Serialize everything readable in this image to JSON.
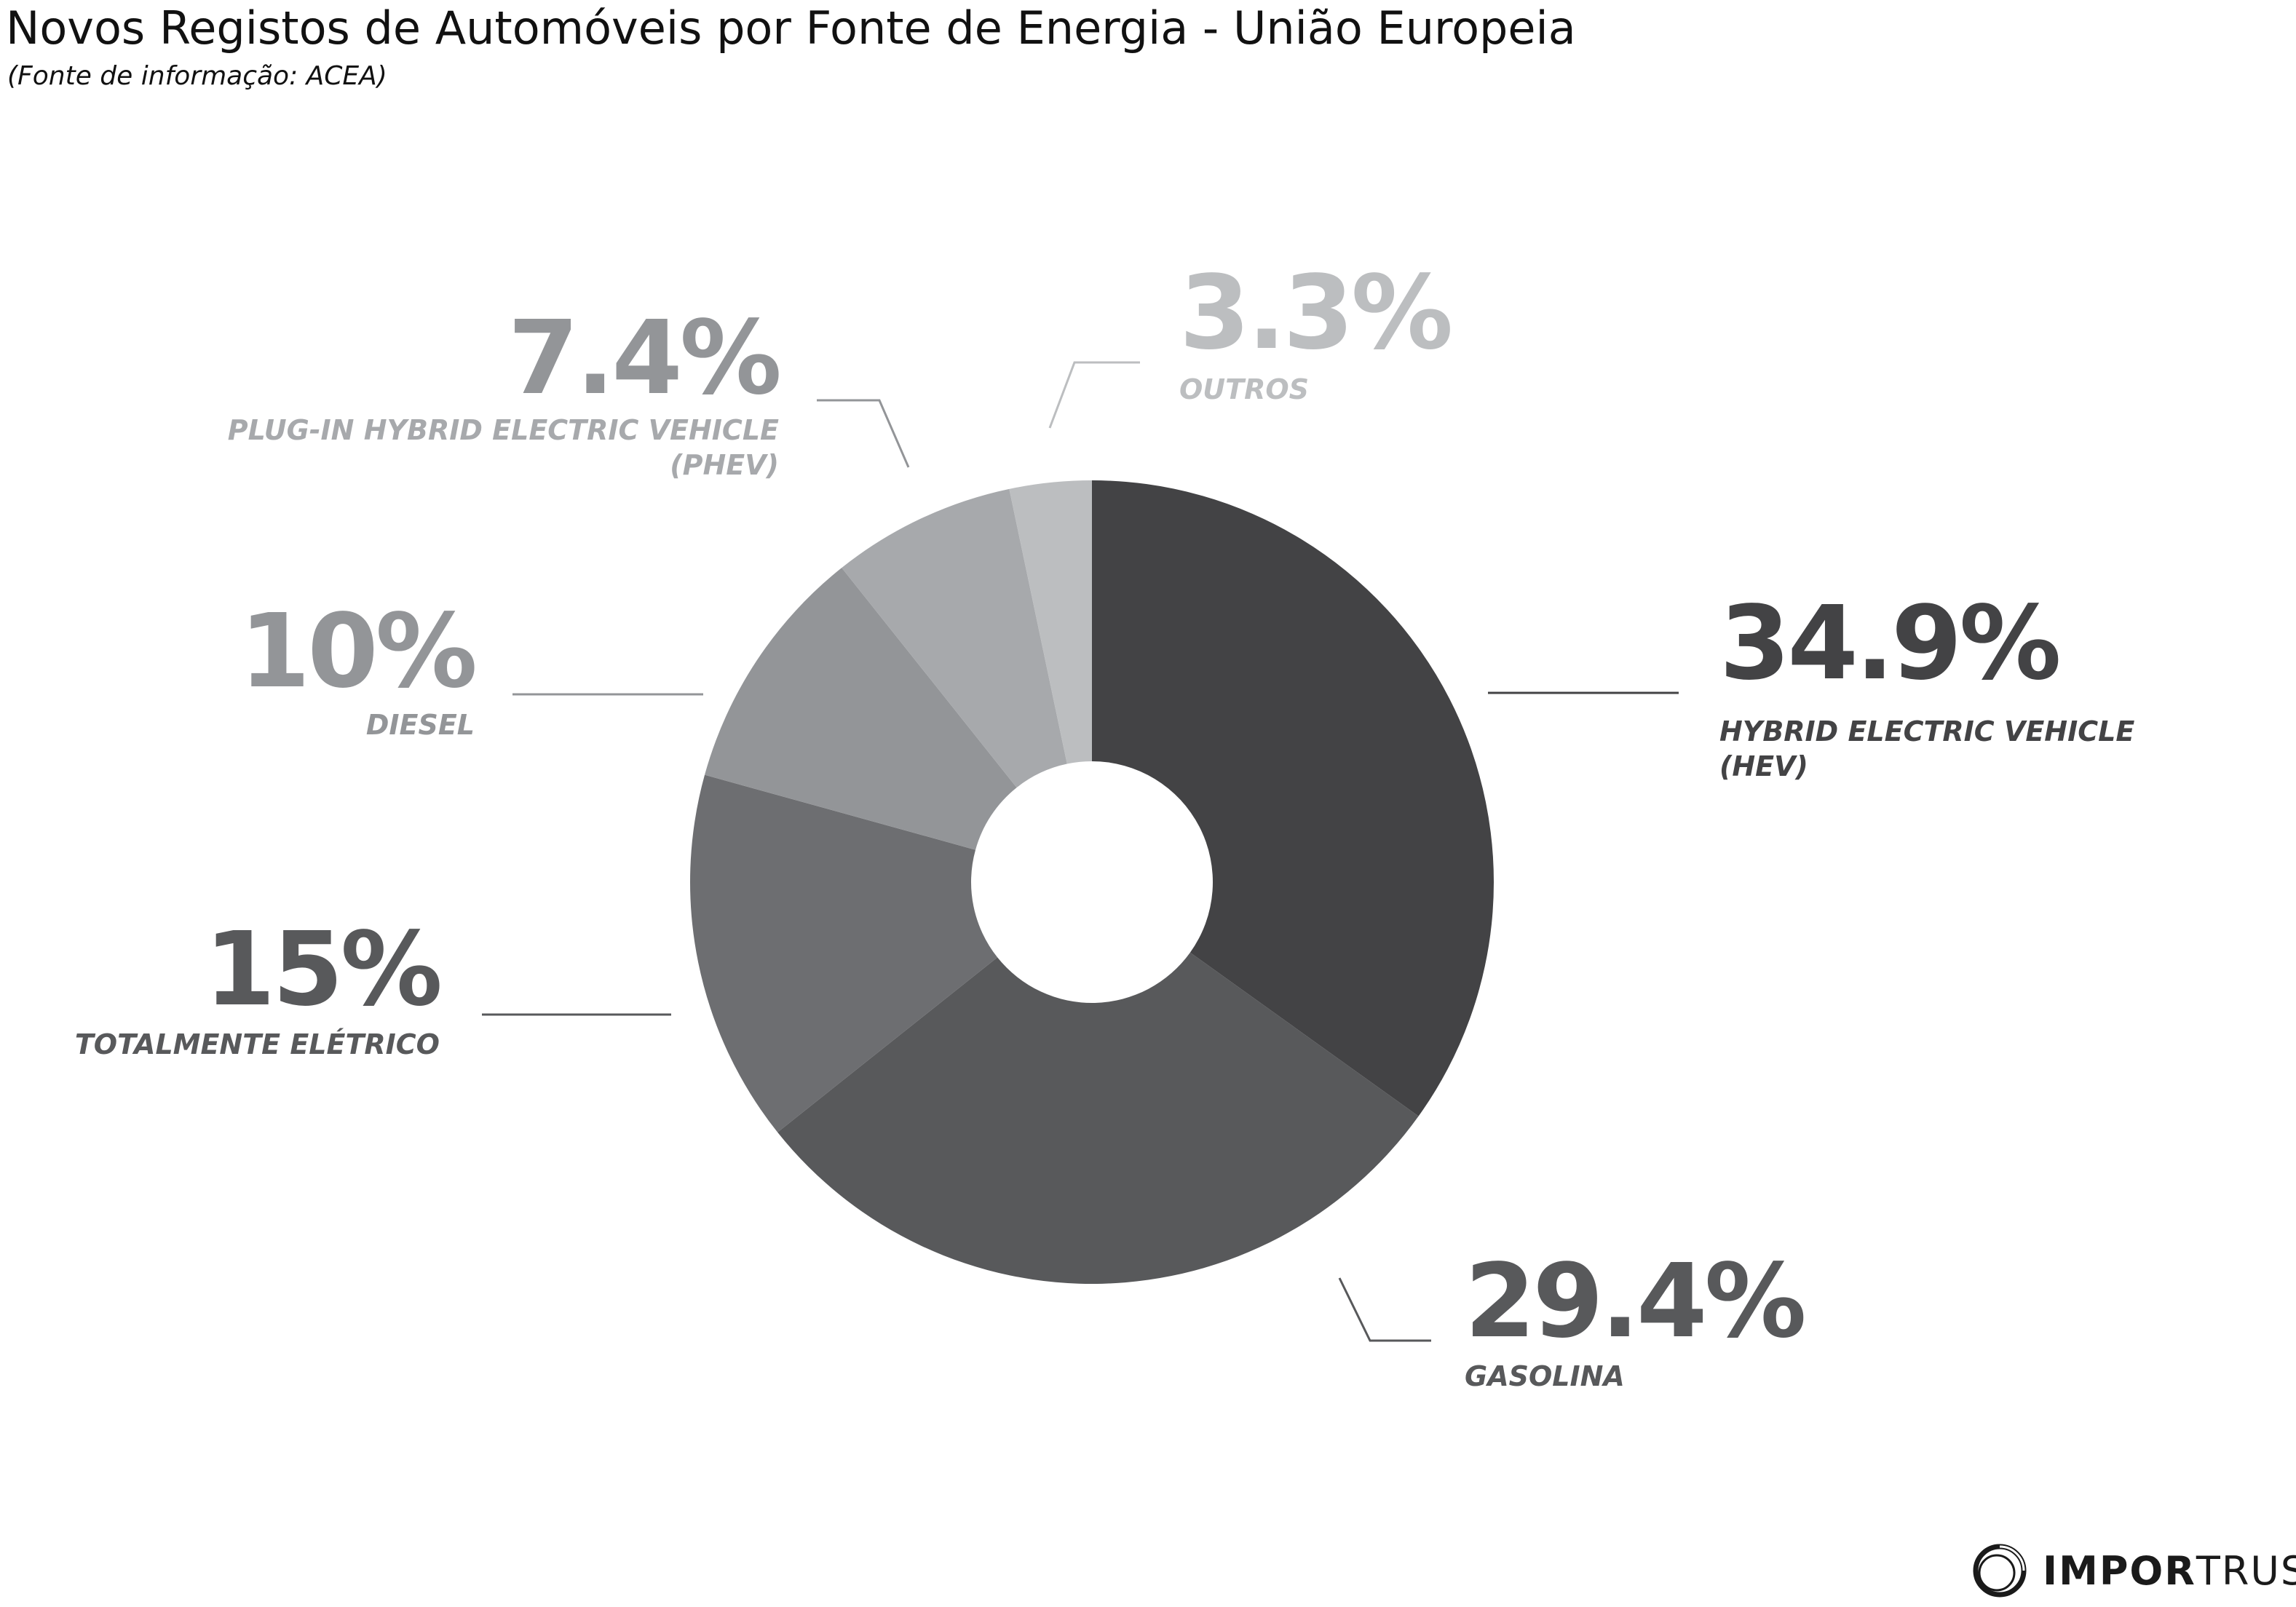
{
  "title": "Novos Registos de Automóveis por Fonte de Energia - União Europeia",
  "subtitle": "(Fonte de informação: ACEA)",
  "chart_data": {
    "type": "pie",
    "donut": true,
    "slices": [
      {
        "name": "HYBRID ELECTRIC VEHICLE (HEV)",
        "label_lines": [
          "HYBRID ELECTRIC VEHICLE",
          "(HEV)"
        ],
        "value": 34.9,
        "label": "34.9%",
        "color": "#434345"
      },
      {
        "name": "GASOLINA",
        "label_lines": [
          "GASOLINA"
        ],
        "value": 29.4,
        "label": "29.4%",
        "color": "#58595b"
      },
      {
        "name": "TOTALMENTE ELÉTRICO",
        "label_lines": [
          "TOTALMENTE ELÉTRICO"
        ],
        "value": 15,
        "label": "15%",
        "color": "#6d6e71"
      },
      {
        "name": "DIESEL",
        "label_lines": [
          "DIESEL"
        ],
        "value": 10,
        "label": "10%",
        "color": "#939598"
      },
      {
        "name": "PLUG-IN HYBRID ELECTRIC VEHICLE (PHEV)",
        "label_lines": [
          "PLUG-IN HYBRID ELECTRIC VEHICLE",
          "(PHEV)"
        ],
        "value": 7.4,
        "label": "7.4%",
        "color": "#a7a9ac"
      },
      {
        "name": "OUTROS",
        "label_lines": [
          "OUTROS"
        ],
        "value": 3.3,
        "label": "3.3%",
        "color": "#bcbec0"
      }
    ]
  },
  "logo": {
    "bold": "IMPOR",
    "light": "TRUST",
    "icon": "importrust-ring-icon"
  }
}
